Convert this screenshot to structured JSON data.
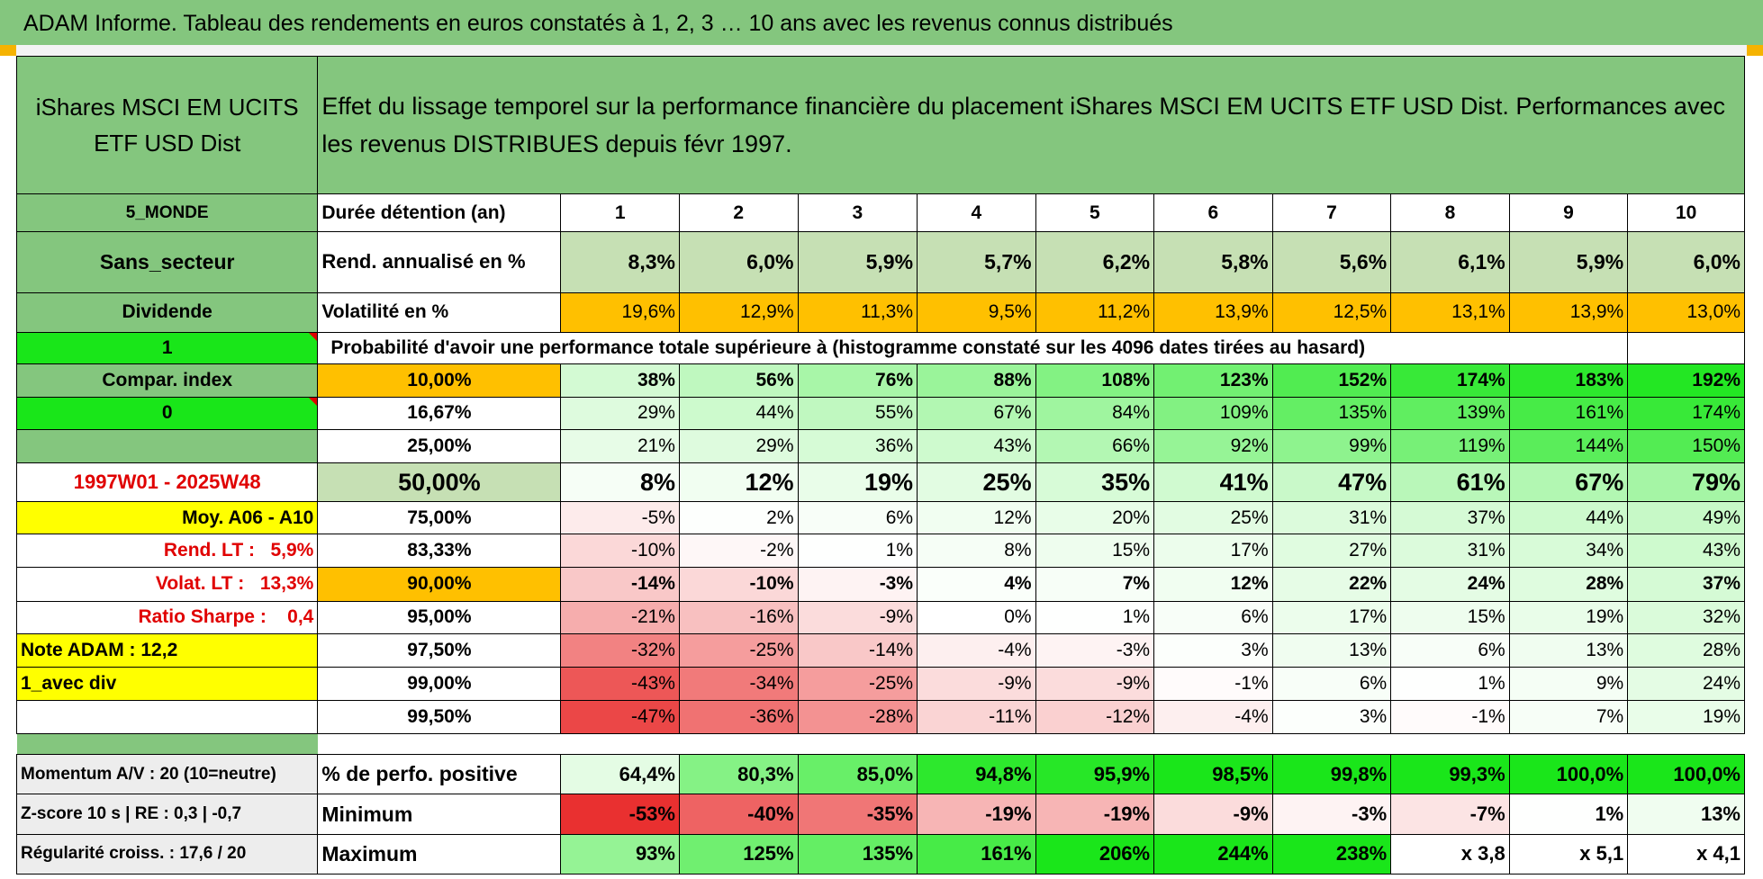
{
  "banner": "ADAM Informe. Tableau des rendements en euros constatés à 1, 2, 3 … 10 ans avec les revenus connus distribués",
  "header": {
    "fund": "iShares MSCI EM UCITS ETF USD Dist",
    "description": "Effet du lissage temporel sur la performance financière du placement iShares MSCI EM UCITS ETF USD Dist. Performances avec les revenus DISTRIBUES depuis févr 1997."
  },
  "side": {
    "zone": "5_MONDE",
    "sector": "Sans_secteur",
    "dividend": "Dividende",
    "flag1": "1",
    "compar": "Compar. index",
    "flag0": "0",
    "period": "1997W01 - 2025W48",
    "moy": "Moy. A06 - A10",
    "rend_lt_label": "Rend. LT :",
    "rend_lt_value": "5,9%",
    "volat_lt_label": "Volat. LT :",
    "volat_lt_value": "13,3%",
    "sharpe_label": "Ratio Sharpe :",
    "sharpe_value": "0,4",
    "note": "Note ADAM : 12,2",
    "avec_div": "1_avec div",
    "momentum": "Momentum A/V : 20 (10=neutre)",
    "zscore": "Z-score 10 s | RE : 0,3 | -0,7",
    "regularite": "Régularité croiss. : 17,6 / 20"
  },
  "table": {
    "duration_label": "Durée détention (an)",
    "years": [
      "1",
      "2",
      "3",
      "4",
      "5",
      "6",
      "7",
      "8",
      "9",
      "10"
    ],
    "rend_label": "Rend. annualisé en %",
    "rend": [
      "8,3%",
      "6,0%",
      "5,9%",
      "5,7%",
      "6,2%",
      "5,8%",
      "5,6%",
      "6,1%",
      "5,9%",
      "6,0%"
    ],
    "vol_label": "Volatilité en %",
    "vol": [
      "19,6%",
      "12,9%",
      "11,3%",
      "9,5%",
      "11,2%",
      "13,9%",
      "12,5%",
      "13,1%",
      "13,9%",
      "13,0%"
    ],
    "prob_title": "Probabilité d'avoir une performance totale supérieure à (histogramme constaté sur les 4096 dates tirées au hasard)",
    "rows": [
      {
        "p": "10,00%",
        "v": [
          "38%",
          "56%",
          "76%",
          "88%",
          "108%",
          "123%",
          "152%",
          "174%",
          "183%",
          "192%"
        ]
      },
      {
        "p": "16,67%",
        "v": [
          "29%",
          "44%",
          "55%",
          "67%",
          "84%",
          "109%",
          "135%",
          "139%",
          "161%",
          "174%"
        ]
      },
      {
        "p": "25,00%",
        "v": [
          "21%",
          "29%",
          "36%",
          "43%",
          "66%",
          "92%",
          "99%",
          "119%",
          "144%",
          "150%"
        ]
      },
      {
        "p": "50,00%",
        "v": [
          "8%",
          "12%",
          "19%",
          "25%",
          "35%",
          "41%",
          "47%",
          "61%",
          "67%",
          "79%"
        ]
      },
      {
        "p": "75,00%",
        "v": [
          "-5%",
          "2%",
          "6%",
          "12%",
          "20%",
          "25%",
          "31%",
          "37%",
          "44%",
          "49%"
        ]
      },
      {
        "p": "83,33%",
        "v": [
          "-10%",
          "-2%",
          "1%",
          "8%",
          "15%",
          "17%",
          "27%",
          "31%",
          "34%",
          "43%"
        ]
      },
      {
        "p": "90,00%",
        "v": [
          "-14%",
          "-10%",
          "-3%",
          "4%",
          "7%",
          "12%",
          "22%",
          "24%",
          "28%",
          "37%"
        ]
      },
      {
        "p": "95,00%",
        "v": [
          "-21%",
          "-16%",
          "-9%",
          "0%",
          "1%",
          "6%",
          "17%",
          "15%",
          "19%",
          "32%"
        ]
      },
      {
        "p": "97,50%",
        "v": [
          "-32%",
          "-25%",
          "-14%",
          "-4%",
          "-3%",
          "3%",
          "13%",
          "6%",
          "13%",
          "28%"
        ]
      },
      {
        "p": "99,00%",
        "v": [
          "-43%",
          "-34%",
          "-25%",
          "-9%",
          "-9%",
          "-1%",
          "6%",
          "1%",
          "9%",
          "24%"
        ]
      },
      {
        "p": "99,50%",
        "v": [
          "-47%",
          "-36%",
          "-28%",
          "-11%",
          "-12%",
          "-4%",
          "3%",
          "-1%",
          "7%",
          "19%"
        ]
      }
    ],
    "pos_label": "% de perfo. positive",
    "pos": [
      "64,4%",
      "80,3%",
      "85,0%",
      "94,8%",
      "95,9%",
      "98,5%",
      "99,8%",
      "99,3%",
      "100,0%",
      "100,0%"
    ],
    "min_label": "Minimum",
    "min": [
      "-53%",
      "-40%",
      "-35%",
      "-19%",
      "-19%",
      "-9%",
      "-3%",
      "-7%",
      "1%",
      "13%"
    ],
    "max_label": "Maximum",
    "max": [
      "93%",
      "125%",
      "135%",
      "161%",
      "206%",
      "244%",
      "238%",
      "x 3,8",
      "x 5,1",
      "x 4,1"
    ]
  }
}
